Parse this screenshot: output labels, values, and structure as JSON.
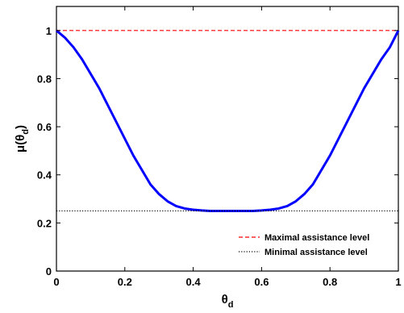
{
  "chart_data": {
    "type": "line",
    "title": "",
    "xlabel": "θ",
    "xlabel_sub": "d",
    "ylabel_prefix": "μ(θ",
    "ylabel_sub": "d",
    "ylabel_suffix": ")",
    "xlim": [
      0,
      1
    ],
    "ylim": [
      0,
      1.1
    ],
    "xticks": [
      0,
      0.2,
      0.4,
      0.6,
      0.8,
      1
    ],
    "xtick_labels": [
      "0",
      "0.2",
      "0.4",
      "0.6",
      "0.8",
      "1"
    ],
    "yticks": [
      0,
      0.2,
      0.4,
      0.6,
      0.8,
      1
    ],
    "ytick_labels": [
      "0",
      "0.2",
      "0.4",
      "0.6",
      "0.8",
      "1"
    ],
    "grid": false,
    "legend_position": "bottom-right",
    "series": [
      {
        "kind": "curve",
        "color": "#0000ff",
        "style": "solid",
        "x": [
          0,
          0.025,
          0.05,
          0.075,
          0.1,
          0.125,
          0.15,
          0.175,
          0.2,
          0.225,
          0.25,
          0.275,
          0.3,
          0.325,
          0.35,
          0.375,
          0.4,
          0.425,
          0.45,
          0.475,
          0.5,
          0.525,
          0.55,
          0.575,
          0.6,
          0.625,
          0.65,
          0.675,
          0.7,
          0.725,
          0.75,
          0.775,
          0.8,
          0.825,
          0.85,
          0.875,
          0.9,
          0.925,
          0.95,
          0.975,
          1
        ],
        "y": [
          1.0,
          0.97,
          0.93,
          0.88,
          0.82,
          0.76,
          0.69,
          0.62,
          0.55,
          0.48,
          0.42,
          0.36,
          0.32,
          0.29,
          0.27,
          0.26,
          0.255,
          0.252,
          0.25,
          0.25,
          0.25,
          0.25,
          0.25,
          0.25,
          0.252,
          0.255,
          0.26,
          0.27,
          0.29,
          0.32,
          0.36,
          0.42,
          0.48,
          0.55,
          0.62,
          0.69,
          0.76,
          0.82,
          0.88,
          0.93,
          1.0
        ]
      },
      {
        "kind": "hline",
        "name": "Maximal assistance level",
        "color": "#ff0000",
        "style": "dashed",
        "y": 1.0
      },
      {
        "kind": "hline",
        "name": "Minimal assistance level",
        "color": "#000000",
        "style": "dotted",
        "y": 0.25
      }
    ]
  }
}
